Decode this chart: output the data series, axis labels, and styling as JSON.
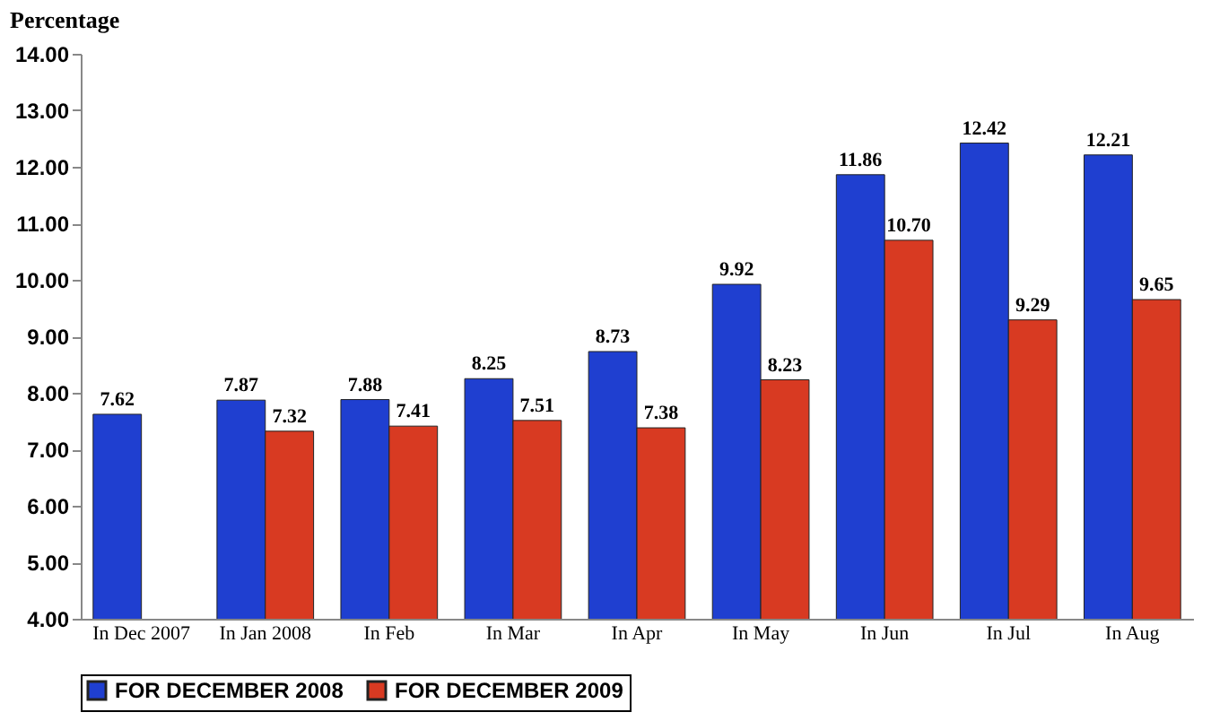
{
  "chart_data": {
    "type": "bar",
    "ylabel": "Percentage",
    "categories": [
      "In Dec 2007",
      "In Jan 2008",
      "In Feb",
      "In Mar",
      "In Apr",
      "In May",
      "In Jun",
      "In Jul",
      "In Aug"
    ],
    "series": [
      {
        "name": "FOR DECEMBER 2008",
        "color": "#1f3fd0",
        "values": [
          7.62,
          7.87,
          7.88,
          8.25,
          8.73,
          9.92,
          11.86,
          12.42,
          12.21
        ],
        "value_labels": [
          "7.62",
          "7.87",
          "7.88",
          "8.25",
          "8.73",
          "9.92",
          "11.86",
          "12.42",
          "12.21"
        ]
      },
      {
        "name": "FOR DECEMBER 2009",
        "color": "#d83a22",
        "values": [
          null,
          7.32,
          7.41,
          7.51,
          7.38,
          8.23,
          10.7,
          9.29,
          9.65
        ],
        "value_labels": [
          null,
          "7.32",
          "7.41",
          "7.51",
          "7.38",
          "8.23",
          "10.70",
          "9.29",
          "9.65"
        ]
      }
    ],
    "ylim": [
      4,
      14
    ],
    "yticks": [
      {
        "value": 4,
        "label": "4.00"
      },
      {
        "value": 5,
        "label": "5.00"
      },
      {
        "value": 6,
        "label": "6.00"
      },
      {
        "value": 7,
        "label": "7.00"
      },
      {
        "value": 8,
        "label": "8.00"
      },
      {
        "value": 9,
        "label": "9.00"
      },
      {
        "value": 10,
        "label": "10.00"
      },
      {
        "value": 11,
        "label": "11.00"
      },
      {
        "value": 12,
        "label": "12.00"
      },
      {
        "value": 13,
        "label": "13.00"
      },
      {
        "value": 14,
        "label": "14.00"
      }
    ],
    "grid": false,
    "legend": "bottom"
  }
}
